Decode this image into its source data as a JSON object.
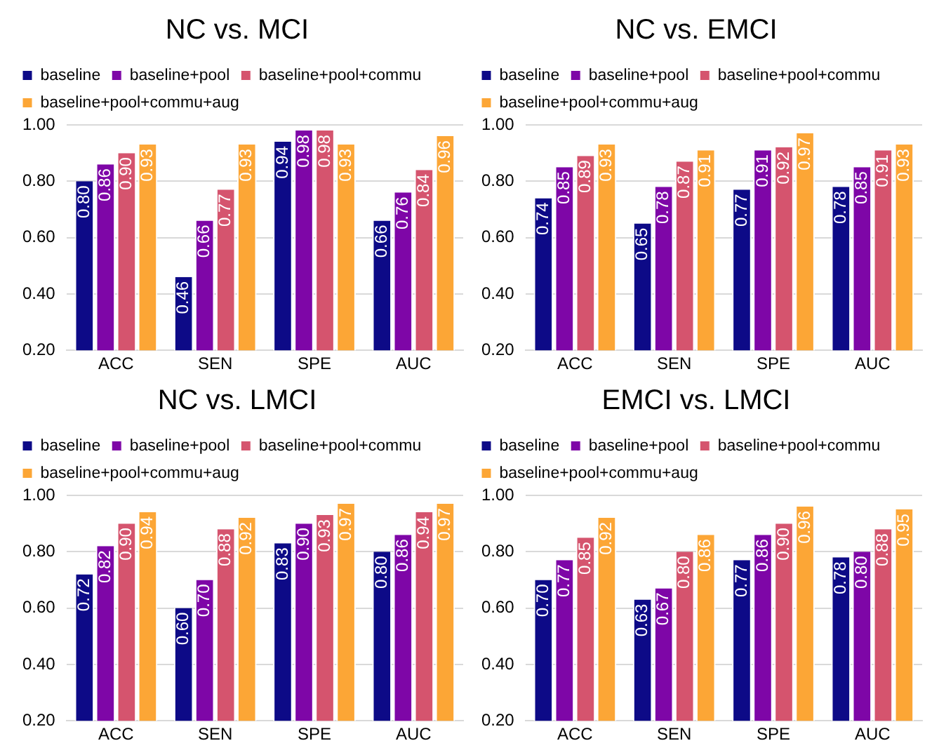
{
  "chart_data": [
    {
      "type": "bar",
      "title": "NC vs. MCI",
      "categories": [
        "ACC",
        "SEN",
        "SPE",
        "AUC"
      ],
      "ylim": [
        0.2,
        1.0
      ],
      "yticks": [
        {
          "value": 0.2,
          "label": "0.20"
        },
        {
          "value": 0.4,
          "label": "0.40"
        },
        {
          "value": 0.6,
          "label": "0.60"
        },
        {
          "value": 0.8,
          "label": "0.80"
        },
        {
          "value": 1.0,
          "label": "1.00"
        }
      ],
      "grid": "y",
      "legend": "top",
      "series": [
        {
          "name": "baseline",
          "color": "#0d0a87",
          "values": [
            0.8,
            0.46,
            0.94,
            0.66
          ],
          "value_labels": [
            "0.80",
            "0.46",
            "0.94",
            "0.66"
          ]
        },
        {
          "name": "baseline+pool",
          "color": "#7e06a7",
          "values": [
            0.86,
            0.66,
            0.98,
            0.76
          ],
          "value_labels": [
            "0.86",
            "0.66",
            "0.98",
            "0.76"
          ]
        },
        {
          "name": "baseline+pool+commu",
          "color": "#d5546e",
          "values": [
            0.9,
            0.77,
            0.98,
            0.84
          ],
          "value_labels": [
            "0.90",
            "0.77",
            "0.98",
            "0.84"
          ]
        },
        {
          "name": "baseline+pool+commu+aug",
          "color": "#fca636",
          "values": [
            0.93,
            0.93,
            0.93,
            0.96
          ],
          "value_labels": [
            "0.93",
            "0.93",
            "0.93",
            "0.96"
          ]
        }
      ]
    },
    {
      "type": "bar",
      "title": "NC vs. EMCI",
      "categories": [
        "ACC",
        "SEN",
        "SPE",
        "AUC"
      ],
      "ylim": [
        0.2,
        1.0
      ],
      "yticks": [
        {
          "value": 0.2,
          "label": "0.20"
        },
        {
          "value": 0.4,
          "label": "0.40"
        },
        {
          "value": 0.6,
          "label": "0.60"
        },
        {
          "value": 0.8,
          "label": "0.80"
        },
        {
          "value": 1.0,
          "label": "1.00"
        }
      ],
      "grid": "y",
      "legend": "top",
      "series": [
        {
          "name": "baseline",
          "color": "#0d0a87",
          "values": [
            0.74,
            0.65,
            0.77,
            0.78
          ],
          "value_labels": [
            "0.74",
            "0.65",
            "0.77",
            "0.78"
          ]
        },
        {
          "name": "baseline+pool",
          "color": "#7e06a7",
          "values": [
            0.85,
            0.78,
            0.91,
            0.85
          ],
          "value_labels": [
            "0.85",
            "0.78",
            "0.91",
            "0.85"
          ]
        },
        {
          "name": "baseline+pool+commu",
          "color": "#d5546e",
          "values": [
            0.89,
            0.87,
            0.92,
            0.91
          ],
          "value_labels": [
            "0.89",
            "0.87",
            "0.92",
            "0.91"
          ]
        },
        {
          "name": "baseline+pool+commu+aug",
          "color": "#fca636",
          "values": [
            0.93,
            0.91,
            0.97,
            0.93
          ],
          "value_labels": [
            "0.93",
            "0.91",
            "0.97",
            "0.93"
          ]
        }
      ]
    },
    {
      "type": "bar",
      "title": "NC vs. LMCI",
      "categories": [
        "ACC",
        "SEN",
        "SPE",
        "AUC"
      ],
      "ylim": [
        0.2,
        1.0
      ],
      "yticks": [
        {
          "value": 0.2,
          "label": "0.20"
        },
        {
          "value": 0.4,
          "label": "0.40"
        },
        {
          "value": 0.6,
          "label": "0.60"
        },
        {
          "value": 0.8,
          "label": "0.80"
        },
        {
          "value": 1.0,
          "label": "1.00"
        }
      ],
      "grid": "y",
      "legend": "top",
      "series": [
        {
          "name": "baseline",
          "color": "#0d0a87",
          "values": [
            0.72,
            0.6,
            0.83,
            0.8
          ],
          "value_labels": [
            "0.72",
            "0.60",
            "0.83",
            "0.80"
          ]
        },
        {
          "name": "baseline+pool",
          "color": "#7e06a7",
          "values": [
            0.82,
            0.7,
            0.9,
            0.86
          ],
          "value_labels": [
            "0.82",
            "0.70",
            "0.90",
            "0.86"
          ]
        },
        {
          "name": "baseline+pool+commu",
          "color": "#d5546e",
          "values": [
            0.9,
            0.88,
            0.93,
            0.94
          ],
          "value_labels": [
            "0.90",
            "0.88",
            "0.93",
            "0.94"
          ]
        },
        {
          "name": "baseline+pool+commu+aug",
          "color": "#fca636",
          "values": [
            0.94,
            0.92,
            0.97,
            0.97
          ],
          "value_labels": [
            "0.94",
            "0.92",
            "0.97",
            "0.97"
          ]
        }
      ]
    },
    {
      "type": "bar",
      "title": "EMCI vs. LMCI",
      "categories": [
        "ACC",
        "SEN",
        "SPE",
        "AUC"
      ],
      "ylim": [
        0.2,
        1.0
      ],
      "yticks": [
        {
          "value": 0.2,
          "label": "0.20"
        },
        {
          "value": 0.4,
          "label": "0.40"
        },
        {
          "value": 0.6,
          "label": "0.60"
        },
        {
          "value": 0.8,
          "label": "0.80"
        },
        {
          "value": 1.0,
          "label": "1.00"
        }
      ],
      "grid": "y",
      "legend": "top",
      "series": [
        {
          "name": "baseline",
          "color": "#0d0a87",
          "values": [
            0.7,
            0.63,
            0.77,
            0.78
          ],
          "value_labels": [
            "0.70",
            "0.63",
            "0.77",
            "0.78"
          ]
        },
        {
          "name": "baseline+pool",
          "color": "#7e06a7",
          "values": [
            0.77,
            0.67,
            0.86,
            0.8
          ],
          "value_labels": [
            "0.77",
            "0.67",
            "0.86",
            "0.80"
          ]
        },
        {
          "name": "baseline+pool+commu",
          "color": "#d5546e",
          "values": [
            0.85,
            0.8,
            0.9,
            0.88
          ],
          "value_labels": [
            "0.85",
            "0.80",
            "0.90",
            "0.88"
          ]
        },
        {
          "name": "baseline+pool+commu+aug",
          "color": "#fca636",
          "values": [
            0.92,
            0.86,
            0.96,
            0.95
          ],
          "value_labels": [
            "0.92",
            "0.86",
            "0.96",
            "0.95"
          ]
        }
      ]
    }
  ]
}
